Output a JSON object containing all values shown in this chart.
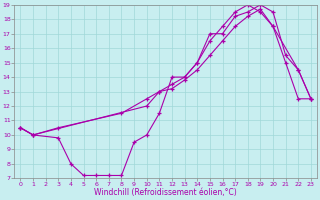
{
  "xlabel": "Windchill (Refroidissement éolien,°C)",
  "xlim": [
    -0.5,
    23.5
  ],
  "ylim": [
    7,
    19
  ],
  "xticks": [
    0,
    1,
    2,
    3,
    4,
    5,
    6,
    7,
    8,
    9,
    10,
    11,
    12,
    13,
    14,
    15,
    16,
    17,
    18,
    19,
    20,
    21,
    22,
    23
  ],
  "yticks": [
    7,
    8,
    9,
    10,
    11,
    12,
    13,
    14,
    15,
    16,
    17,
    18,
    19
  ],
  "bg_color": "#c8eef0",
  "line_color": "#aa00aa",
  "line1_x": [
    0,
    1,
    3,
    4,
    5,
    6,
    7,
    8,
    9,
    10,
    11,
    12,
    13,
    14,
    15,
    16,
    17,
    18,
    19,
    20,
    21,
    22,
    23
  ],
  "line1_y": [
    10.5,
    10,
    9.8,
    8,
    7.2,
    7.2,
    7.2,
    7.2,
    9.5,
    10,
    11.5,
    14,
    14,
    15,
    17,
    17,
    18.2,
    18.5,
    19,
    18.5,
    15.5,
    14.5,
    12.5
  ],
  "line2_x": [
    0,
    1,
    3,
    8,
    10,
    11,
    12,
    13,
    14,
    15,
    16,
    17,
    18,
    19,
    20,
    21,
    22,
    23
  ],
  "line2_y": [
    10.5,
    10,
    10.5,
    11.5,
    12.5,
    13,
    13.2,
    13.8,
    14.5,
    15.5,
    16.5,
    17.5,
    18.2,
    18.7,
    17.5,
    15,
    12.5,
    12.5
  ],
  "line3_x": [
    0,
    1,
    10,
    11,
    12,
    13,
    14,
    15,
    16,
    17,
    18,
    19,
    20,
    22,
    23
  ],
  "line3_y": [
    10.5,
    10,
    12,
    13,
    13.5,
    14,
    15,
    16.5,
    17.5,
    18.5,
    19,
    18.5,
    17.5,
    14.5,
    12.5
  ],
  "tick_fontsize": 4.5,
  "xlabel_fontsize": 5.5,
  "grid_color": "#a0d8d8",
  "spine_color": "#888888"
}
